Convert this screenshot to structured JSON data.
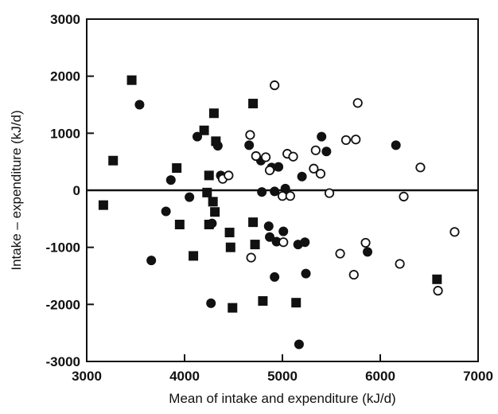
{
  "chart_data": {
    "type": "scatter",
    "title": "",
    "xlabel": "Mean  of intake and expenditure (kJ/d)",
    "ylabel": "Intake – expenditure (kJ/d)",
    "xlim": [
      3000,
      7000
    ],
    "ylim": [
      -3000,
      3000
    ],
    "x_ticks": [
      "3000",
      "4000",
      "5000",
      "6000",
      "7000"
    ],
    "y_ticks": [
      "3000",
      "2000",
      "1000",
      "0",
      "-1000",
      "-2000",
      "-3000"
    ],
    "reference_line_y": 0,
    "grid": false,
    "legend": "none",
    "series": [
      {
        "marker": "filled-square",
        "points": [
          [
            3460,
            1930
          ],
          [
            3270,
            520
          ],
          [
            3170,
            -260
          ],
          [
            3920,
            390
          ],
          [
            3950,
            -600
          ],
          [
            4090,
            -1150
          ],
          [
            4200,
            1050
          ],
          [
            4250,
            260
          ],
          [
            4230,
            -40
          ],
          [
            4250,
            -600
          ],
          [
            4290,
            -200
          ],
          [
            4310,
            -380
          ],
          [
            4300,
            1350
          ],
          [
            4320,
            860
          ],
          [
            4470,
            -1000
          ],
          [
            4460,
            -740
          ],
          [
            4490,
            -2060
          ],
          [
            4700,
            1520
          ],
          [
            4700,
            -560
          ],
          [
            4720,
            -950
          ],
          [
            4800,
            -1940
          ],
          [
            5140,
            -1970
          ],
          [
            6580,
            -1560
          ]
        ]
      },
      {
        "marker": "filled-circle",
        "points": [
          [
            3540,
            1500
          ],
          [
            3660,
            -1230
          ],
          [
            3810,
            -370
          ],
          [
            3860,
            180
          ],
          [
            4050,
            -120
          ],
          [
            4130,
            940
          ],
          [
            4270,
            -1980
          ],
          [
            4280,
            -580
          ],
          [
            4340,
            780
          ],
          [
            4370,
            260
          ],
          [
            4660,
            790
          ],
          [
            4780,
            520
          ],
          [
            4790,
            -30
          ],
          [
            4860,
            -630
          ],
          [
            4870,
            -820
          ],
          [
            4890,
            400
          ],
          [
            4920,
            -1520
          ],
          [
            4920,
            -20
          ],
          [
            4940,
            -900
          ],
          [
            4960,
            410
          ],
          [
            5010,
            -720
          ],
          [
            5030,
            30
          ],
          [
            5160,
            -950
          ],
          [
            5170,
            -2700
          ],
          [
            5200,
            240
          ],
          [
            5230,
            -910
          ],
          [
            5240,
            -1460
          ],
          [
            5400,
            940
          ],
          [
            5450,
            680
          ],
          [
            5870,
            -1080
          ],
          [
            6160,
            790
          ]
        ]
      },
      {
        "marker": "open-circle",
        "points": [
          [
            4390,
            200
          ],
          [
            4450,
            260
          ],
          [
            4670,
            970
          ],
          [
            4680,
            -1180
          ],
          [
            4730,
            600
          ],
          [
            4830,
            580
          ],
          [
            4870,
            350
          ],
          [
            4920,
            1840
          ],
          [
            5000,
            -100
          ],
          [
            5010,
            -910
          ],
          [
            5050,
            640
          ],
          [
            5080,
            -100
          ],
          [
            5110,
            590
          ],
          [
            5320,
            380
          ],
          [
            5340,
            700
          ],
          [
            5390,
            290
          ],
          [
            5480,
            -50
          ],
          [
            5590,
            -1110
          ],
          [
            5650,
            880
          ],
          [
            5730,
            -1480
          ],
          [
            5750,
            890
          ],
          [
            5770,
            1530
          ],
          [
            5850,
            -920
          ],
          [
            6200,
            -1290
          ],
          [
            6240,
            -110
          ],
          [
            6410,
            400
          ],
          [
            6590,
            -1760
          ],
          [
            6760,
            -730
          ]
        ]
      }
    ]
  }
}
